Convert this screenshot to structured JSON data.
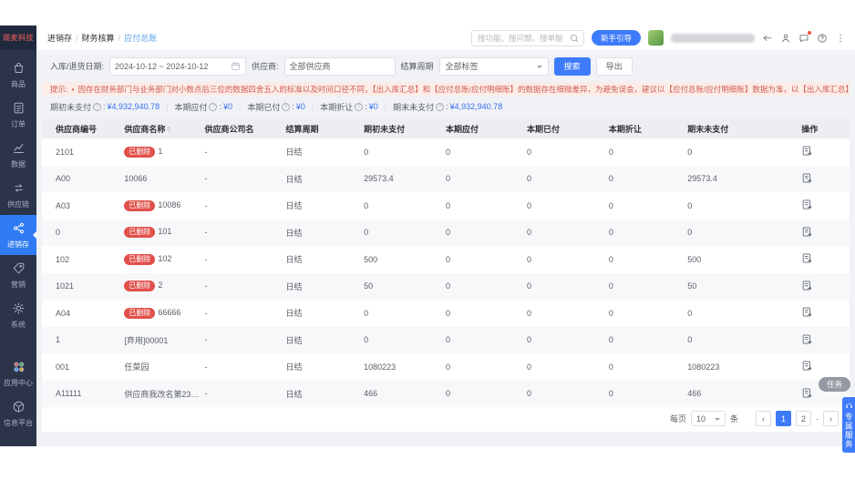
{
  "brand": {
    "logo_text": "观麦科技"
  },
  "breadcrumb": {
    "separator": "/",
    "items": [
      "进销存",
      "财务核算",
      "应付总账"
    ]
  },
  "topbar": {
    "search_placeholder": "搜功能、搜问题、搜单据",
    "guide_button_label": "新手引导"
  },
  "filters": {
    "date_label": "入库/退货日期:",
    "date_value": "2024-10-12 ~ 2024-10-12",
    "supplier_label": "供应商:",
    "supplier_placeholder": "全部供应商",
    "cycle_label": "结算周期",
    "cycle_value": "全部标签",
    "search_button_label": "搜索",
    "export_button_label": "导出"
  },
  "notice": {
    "prefix": "提示:",
    "bullet": "•",
    "text": "因存在财务部门与业务部门对小数点后三位的数据四舍五入的标准以及时间口径不同，【出入库汇总】和【应付总账/应付明细账】的数据存在细微差异，为避免误会，建议以【应付总账/应付明细账】数据为准，以【出入库汇总】数据作为辅助参考。"
  },
  "summary": {
    "colon": ":",
    "separator": "|",
    "items": [
      {
        "label": "期初未支付",
        "value": "¥4,932,940.78"
      },
      {
        "label": "本期应付",
        "value": "¥0"
      },
      {
        "label": "本期已付",
        "value": "¥0"
      },
      {
        "label": "本期折让",
        "value": "¥0"
      },
      {
        "label": "期末未支付",
        "value": "¥4,932,940.78"
      }
    ]
  },
  "table": {
    "columns": [
      "供应商编号",
      "供应商名称",
      "供应商公司名",
      "结算周期",
      "期初未支付",
      "本期应付",
      "本期已付",
      "本期折让",
      "期末未支付",
      "操作"
    ],
    "sort_column_index": 1,
    "deleted_badge": "已删除",
    "rows": [
      {
        "code": "2101",
        "deleted": true,
        "name": "1",
        "company": "-",
        "cycle": "日结",
        "opening": "0",
        "payable": "0",
        "paid": "0",
        "discount": "0",
        "closing": "0"
      },
      {
        "code": "A00",
        "deleted": false,
        "name": "10066",
        "company": "-",
        "cycle": "日结",
        "opening": "29573.4",
        "payable": "0",
        "paid": "0",
        "discount": "0",
        "closing": "29573.4"
      },
      {
        "code": "A03",
        "deleted": true,
        "name": "10086",
        "company": "-",
        "cycle": "日结",
        "opening": "0",
        "payable": "0",
        "paid": "0",
        "discount": "0",
        "closing": "0"
      },
      {
        "code": "0",
        "deleted": true,
        "name": "101",
        "company": "-",
        "cycle": "日结",
        "opening": "0",
        "payable": "0",
        "paid": "0",
        "discount": "0",
        "closing": "0"
      },
      {
        "code": "102",
        "deleted": true,
        "name": "102",
        "company": "-",
        "cycle": "日结",
        "opening": "500",
        "payable": "0",
        "paid": "0",
        "discount": "0",
        "closing": "500"
      },
      {
        "code": "1021",
        "deleted": true,
        "name": "2",
        "company": "-",
        "cycle": "日结",
        "opening": "50",
        "payable": "0",
        "paid": "0",
        "discount": "0",
        "closing": "50"
      },
      {
        "code": "A04",
        "deleted": true,
        "name": "66666",
        "company": "-",
        "cycle": "日结",
        "opening": "0",
        "payable": "0",
        "paid": "0",
        "discount": "0",
        "closing": "0"
      },
      {
        "code": "1",
        "deleted": false,
        "name": "[弃用]00001",
        "company": "-",
        "cycle": "日结",
        "opening": "0",
        "payable": "0",
        "paid": "0",
        "discount": "0",
        "closing": "0"
      },
      {
        "code": "001",
        "deleted": false,
        "name": "任菜园",
        "company": "-",
        "cycle": "日结",
        "opening": "1080223",
        "payable": "0",
        "paid": "0",
        "discount": "0",
        "closing": "1080223"
      },
      {
        "code": "A11111",
        "deleted": false,
        "name": "供应商我改名第2333",
        "company": "-",
        "cycle": "日结",
        "opening": "466",
        "payable": "0",
        "paid": "0",
        "discount": "0",
        "closing": "466"
      }
    ]
  },
  "pagination": {
    "per_page_label": "每页",
    "per_page_value": "10",
    "unit_label": "条",
    "prev": "‹",
    "next": "›",
    "gap": "-",
    "pages": [
      "1",
      "2"
    ],
    "active_page": "1"
  },
  "sidebar": {
    "items": [
      {
        "label": "商品",
        "icon": "bag-icon",
        "active": false
      },
      {
        "label": "订单",
        "icon": "order-icon",
        "active": false
      },
      {
        "label": "数据",
        "icon": "chart-icon",
        "active": false
      },
      {
        "label": "供应链",
        "icon": "supply-chain-icon",
        "active": false
      },
      {
        "label": "进销存",
        "icon": "inventory-icon",
        "active": true
      },
      {
        "label": "营销",
        "icon": "tag-icon",
        "active": false
      },
      {
        "label": "系统",
        "icon": "gear-icon",
        "active": false
      }
    ],
    "footer_items": [
      {
        "label": "应用中心",
        "icon": "apps-icon"
      },
      {
        "label": "信息平台",
        "icon": "platform-icon"
      }
    ]
  },
  "floating": {
    "task_label": "任务",
    "service_label": "专属服务"
  },
  "colors": {
    "accent": "#3e7bfa",
    "sidebar_bg": "#2b3449",
    "badge_red": "#e1504a",
    "warning_text": "#cf5c52"
  }
}
